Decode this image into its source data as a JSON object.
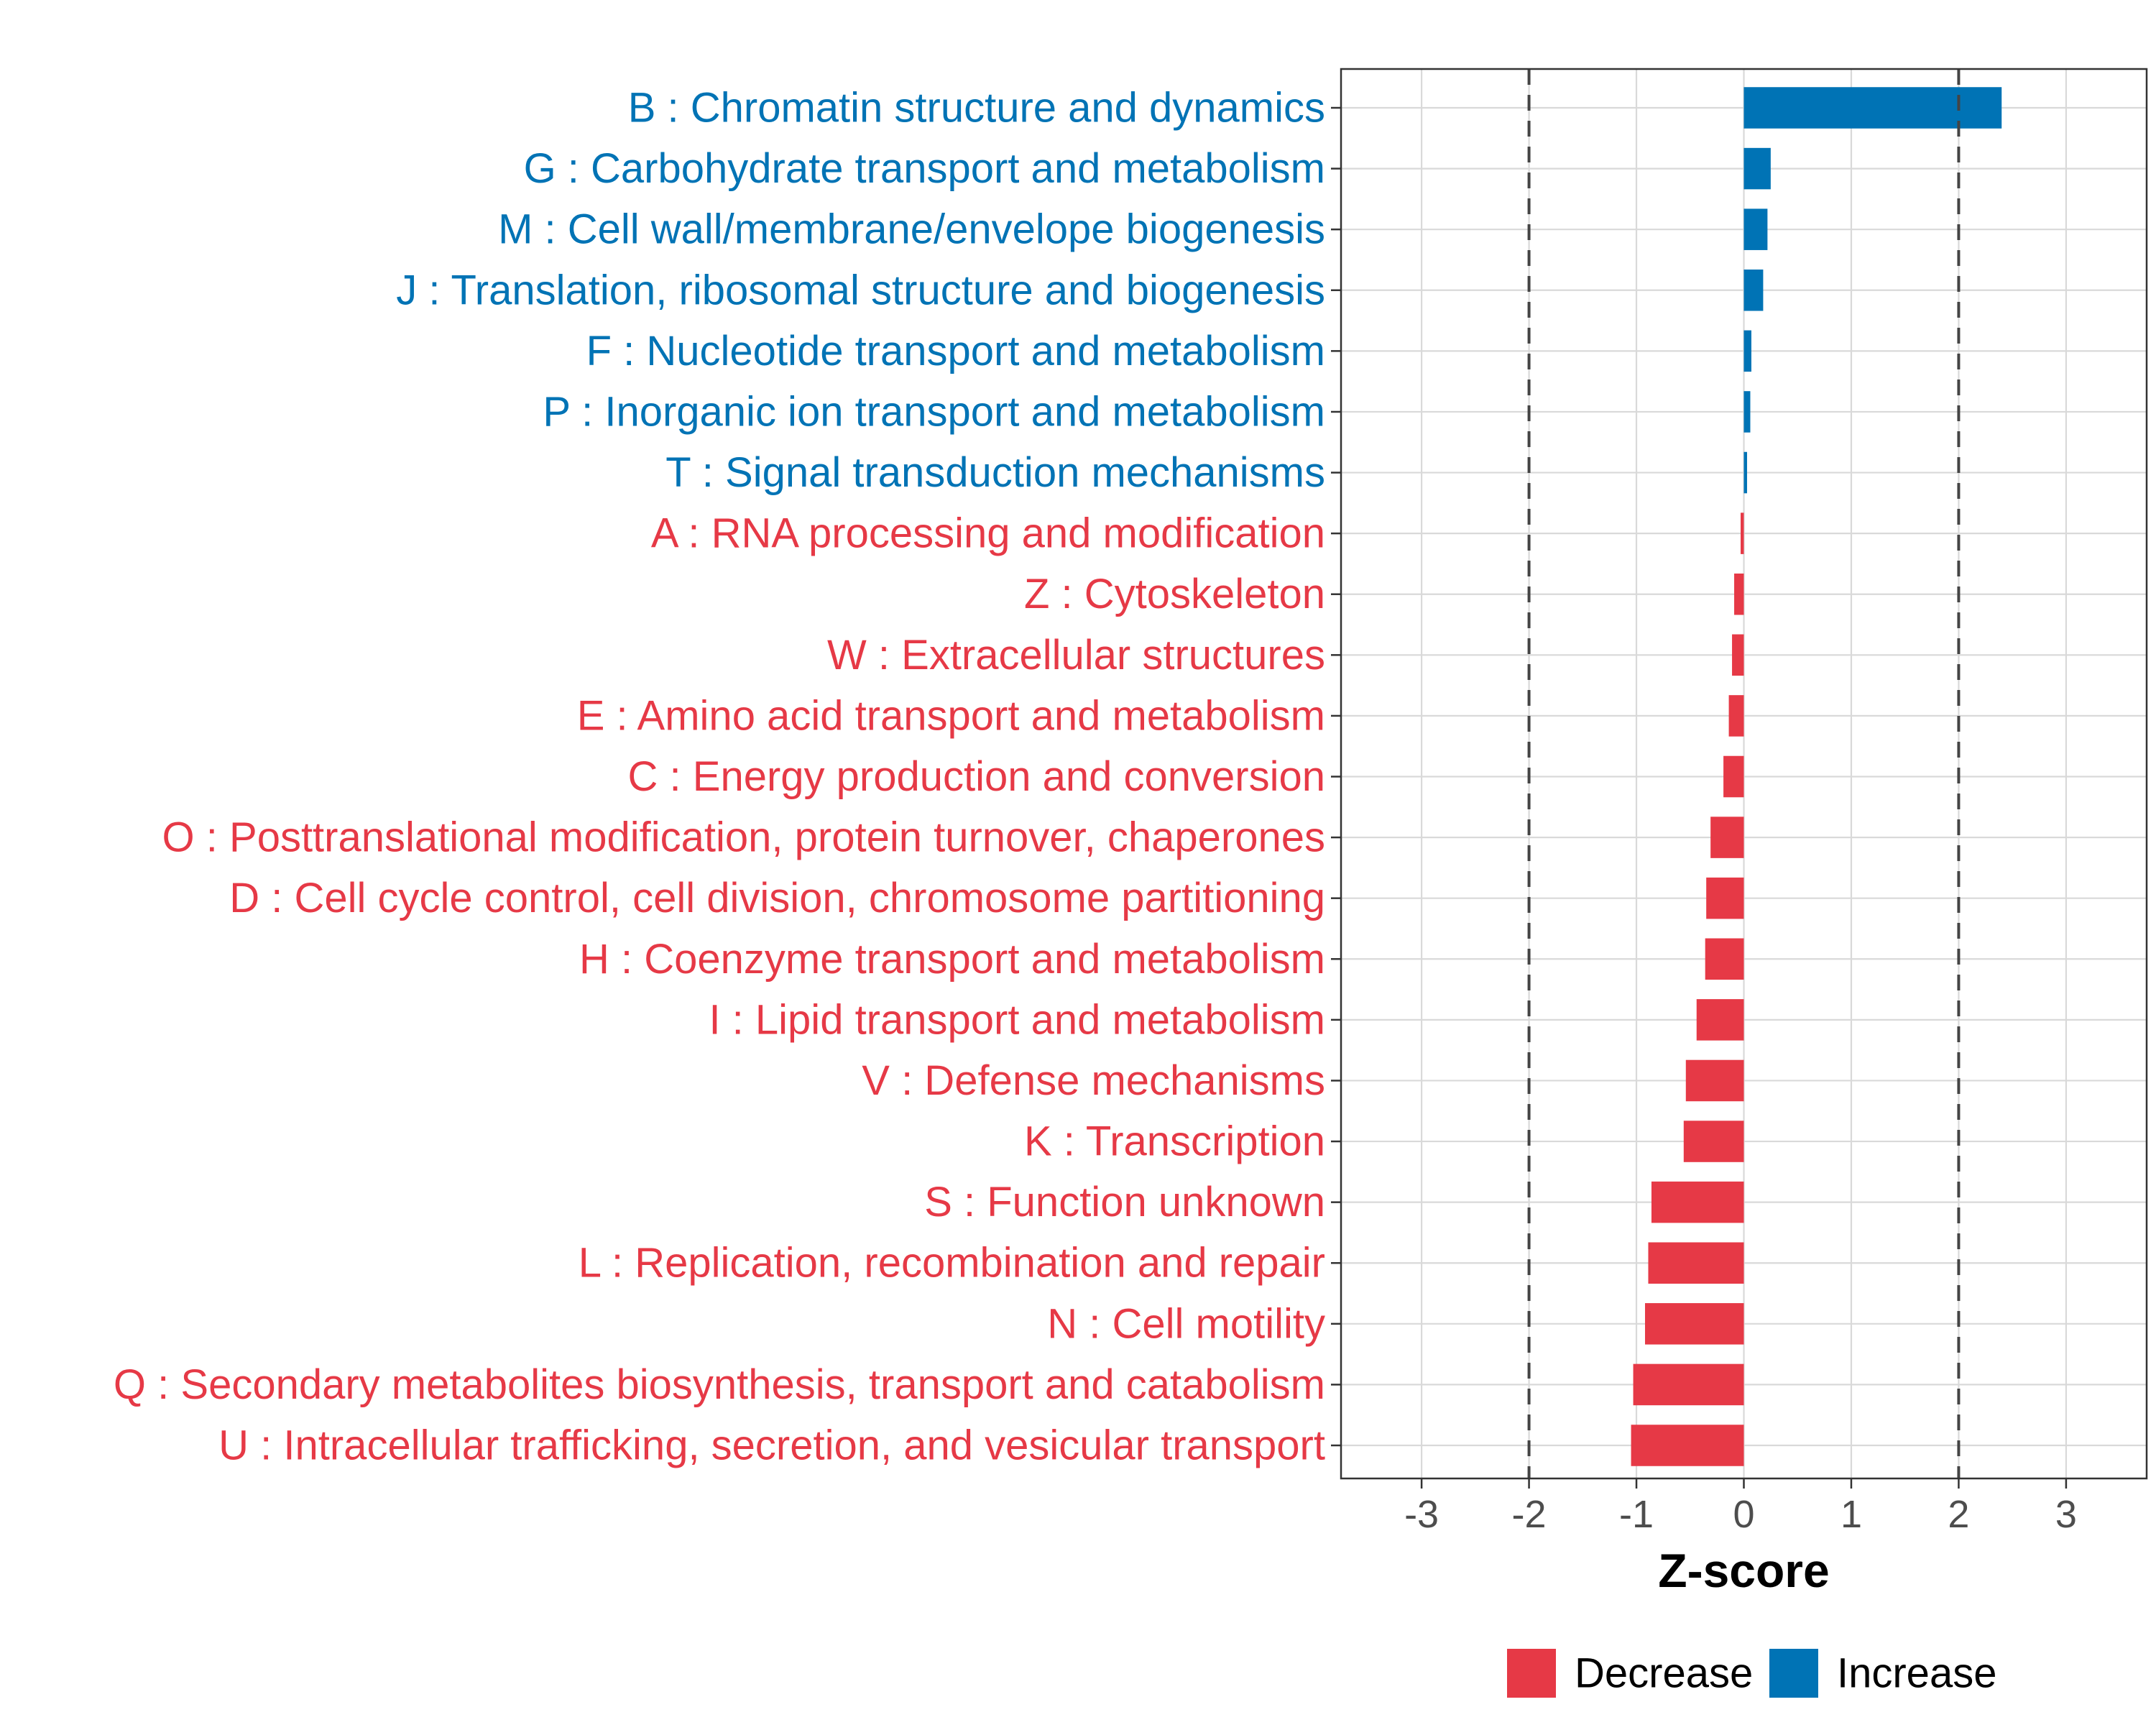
{
  "chart_data": {
    "type": "bar",
    "orientation": "horizontal",
    "title": "",
    "xlabel": "Z-score",
    "ylabel": "",
    "xlim": [
      -3.75,
      3.75
    ],
    "xticks": [
      -3,
      -2,
      -1,
      0,
      1,
      2,
      3
    ],
    "threshold_lines": [
      -2,
      2
    ],
    "grid": true,
    "colors": {
      "Increase": "#0073b5",
      "Decrease": "#e63946"
    },
    "categories": [
      "B : Chromatin structure and dynamics",
      "G : Carbohydrate transport and metabolism",
      "M : Cell wall/membrane/envelope biogenesis",
      "J : Translation, ribosomal structure and biogenesis",
      "F : Nucleotide transport and metabolism",
      "P : Inorganic ion transport and metabolism",
      "T : Signal transduction mechanisms",
      "A : RNA processing and modification",
      "Z : Cytoskeleton",
      "W : Extracellular structures",
      "E : Amino acid transport and metabolism",
      "C : Energy production and conversion",
      "O : Posttranslational modification, protein turnover, chaperones",
      "D : Cell cycle control, cell division, chromosome partitioning",
      "H : Coenzyme transport and metabolism",
      "I : Lipid transport and metabolism",
      "V : Defense mechanisms",
      "K : Transcription",
      "S : Function unknown",
      "L : Replication, recombination and repair",
      "N : Cell motility",
      "Q : Secondary metabolites biosynthesis, transport and catabolism",
      "U : Intracellular trafficking, secretion, and vesicular transport"
    ],
    "values": [
      2.4,
      0.25,
      0.22,
      0.18,
      0.07,
      0.06,
      0.03,
      -0.03,
      -0.09,
      -0.11,
      -0.14,
      -0.19,
      -0.31,
      -0.35,
      -0.36,
      -0.44,
      -0.54,
      -0.56,
      -0.86,
      -0.89,
      -0.92,
      -1.03,
      -1.05
    ],
    "groups": [
      "Increase",
      "Increase",
      "Increase",
      "Increase",
      "Increase",
      "Increase",
      "Increase",
      "Decrease",
      "Decrease",
      "Decrease",
      "Decrease",
      "Decrease",
      "Decrease",
      "Decrease",
      "Decrease",
      "Decrease",
      "Decrease",
      "Decrease",
      "Decrease",
      "Decrease",
      "Decrease",
      "Decrease",
      "Decrease"
    ],
    "legend": {
      "position": "bottom",
      "entries": [
        {
          "label": "Decrease",
          "color": "#e63946"
        },
        {
          "label": "Increase",
          "color": "#0073b5"
        }
      ]
    }
  }
}
